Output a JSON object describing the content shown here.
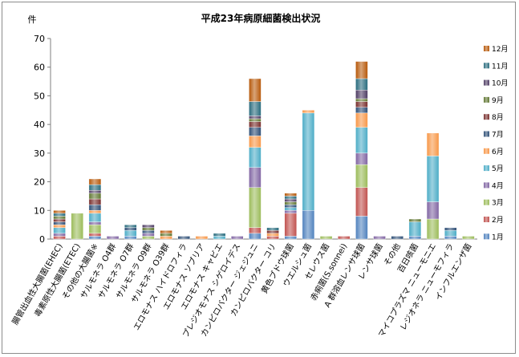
{
  "chart_data": {
    "type": "bar",
    "stacked": true,
    "title": "平成23年病原細菌検出状況",
    "ylabel": "件",
    "xlabel": "",
    "ylim": [
      0,
      70
    ],
    "yticks": [
      0,
      10,
      20,
      30,
      40,
      50,
      60,
      70
    ],
    "grid": false,
    "legend_position": "right",
    "categories": [
      "腸管出血性大腸菌(EHEC)",
      "毒素原性大腸菌(ETEC)",
      "その他の大腸菌※",
      "サルモネラ O4群",
      "サルモネラ O7群",
      "サルモネラ O9群",
      "サルモネラ O39群",
      "エロモナス ハイドロフィラ",
      "エロモナス ソブリア",
      "エロモナス キャビエ",
      "プレジオモナス シゲロイデス",
      "カンピロバクター ジェジュニ",
      "カンピロバクター コリ",
      "黄色ブドウ球菌",
      "ウエルシュ菌",
      "セレウス菌",
      "赤痢菌(S.sonnei)",
      "A 群溶血レンサ球菌",
      "レンサ球菌",
      "その他",
      "百日咳菌",
      "マイコプラズマ ニューモニエ",
      "レジオネラ ニューモフィラ",
      "インフルエンザ菌"
    ],
    "series": [
      {
        "name": "1月",
        "color": "#4f81bd",
        "values": [
          0,
          0,
          1,
          0,
          1,
          0,
          0,
          0,
          0,
          0,
          0,
          2,
          0,
          1,
          10,
          0,
          0,
          8,
          0,
          0,
          1,
          0,
          1,
          0
        ]
      },
      {
        "name": "2月",
        "color": "#c0504d",
        "values": [
          1,
          0,
          1,
          0,
          0,
          0,
          0,
          0,
          0,
          0,
          0,
          2,
          1,
          8,
          0,
          0,
          1,
          10,
          0,
          0,
          0,
          0,
          0,
          0
        ]
      },
      {
        "name": "3月",
        "color": "#9bbb59",
        "values": [
          0,
          9,
          3,
          0,
          0,
          1,
          0,
          0,
          0,
          0,
          0,
          14,
          0,
          0,
          0,
          1,
          0,
          8,
          0,
          0,
          0,
          7,
          0,
          1
        ]
      },
      {
        "name": "4月",
        "color": "#8064a2",
        "values": [
          1,
          0,
          1,
          1,
          0,
          1,
          0,
          0,
          0,
          0,
          1,
          7,
          0,
          1,
          0,
          0,
          0,
          4,
          1,
          0,
          0,
          6,
          0,
          0
        ]
      },
      {
        "name": "5月",
        "color": "#4bacc6",
        "values": [
          2,
          0,
          3,
          0,
          2,
          0,
          0,
          0,
          0,
          1,
          0,
          7,
          0,
          1,
          34,
          0,
          0,
          9,
          0,
          0,
          5,
          16,
          2,
          0
        ]
      },
      {
        "name": "6月",
        "color": "#f79646",
        "values": [
          1,
          0,
          1,
          0,
          0,
          0,
          1,
          0,
          1,
          0,
          0,
          4,
          1,
          0,
          1,
          0,
          0,
          5,
          0,
          0,
          0,
          8,
          0,
          0
        ]
      },
      {
        "name": "7月",
        "color": "#2c4d75",
        "values": [
          1,
          0,
          2,
          0,
          1,
          1,
          0,
          1,
          0,
          0,
          0,
          3,
          0,
          1,
          0,
          0,
          0,
          2,
          0,
          1,
          0,
          0,
          1,
          0
        ]
      },
      {
        "name": "8月",
        "color": "#772c2a",
        "values": [
          1,
          0,
          2,
          0,
          0,
          0,
          0,
          0,
          0,
          0,
          0,
          2,
          1,
          0,
          0,
          0,
          0,
          2,
          0,
          0,
          0,
          0,
          0,
          0
        ]
      },
      {
        "name": "9月",
        "color": "#5f7530",
        "values": [
          1,
          0,
          2,
          0,
          0,
          1,
          1,
          0,
          0,
          0,
          0,
          1,
          0,
          1,
          0,
          0,
          0,
          1,
          0,
          0,
          1,
          0,
          0,
          0
        ]
      },
      {
        "name": "10月",
        "color": "#4d3b62",
        "values": [
          0,
          0,
          1,
          0,
          0,
          1,
          0,
          0,
          0,
          0,
          0,
          1,
          0,
          1,
          0,
          0,
          0,
          3,
          0,
          0,
          0,
          0,
          0,
          0
        ]
      },
      {
        "name": "11月",
        "color": "#276a7c",
        "values": [
          1,
          0,
          2,
          0,
          1,
          0,
          0,
          0,
          0,
          1,
          0,
          5,
          1,
          1,
          0,
          0,
          0,
          4,
          0,
          0,
          0,
          0,
          0,
          0
        ]
      },
      {
        "name": "12月",
        "color": "#b65708",
        "values": [
          1,
          0,
          2,
          0,
          0,
          0,
          1,
          0,
          0,
          0,
          0,
          8,
          0,
          1,
          0,
          0,
          0,
          6,
          0,
          0,
          0,
          0,
          0,
          0
        ]
      }
    ]
  }
}
